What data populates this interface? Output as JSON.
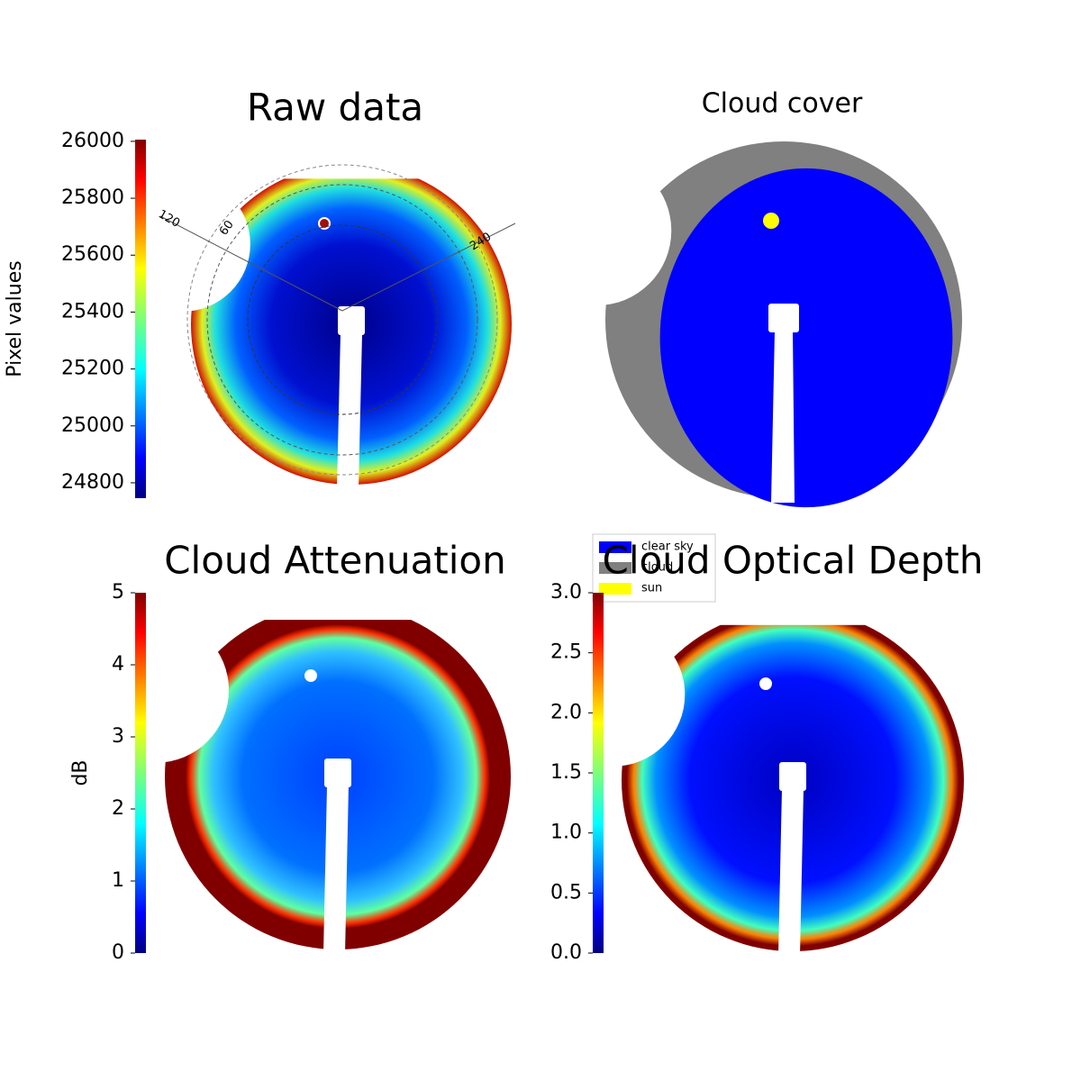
{
  "chart_data": [
    {
      "type": "image",
      "title": "Raw data",
      "colorbar": {
        "label": "Pixel values",
        "colormap": "jet",
        "lim": [
          24746,
          26006
        ],
        "ticks": [
          24800,
          25000,
          25200,
          25400,
          25600,
          25800,
          26000
        ]
      },
      "annotations": [
        "120",
        "60",
        "240"
      ]
    },
    {
      "type": "mask",
      "title": "Cloud cover",
      "legend": {
        "entries": [
          {
            "name": "clear sky",
            "color": "#0000ff"
          },
          {
            "name": "cloud",
            "color": "#808080"
          },
          {
            "name": "sun",
            "color": "#ffff00"
          }
        ]
      }
    },
    {
      "type": "image",
      "title": "Cloud Attenuation",
      "colorbar": {
        "label": "dB",
        "colormap": "jet",
        "lim": [
          0,
          5
        ],
        "ticks": [
          0,
          1,
          2,
          3,
          4,
          5
        ]
      }
    },
    {
      "type": "image",
      "title": "Cloud Optical Depth",
      "colorbar": {
        "colormap": "jet",
        "lim": [
          0,
          3
        ],
        "ticks": [
          {
            "value": 0,
            "label": "0.0"
          },
          {
            "value": 0.5,
            "label": "0.5"
          },
          {
            "value": 1,
            "label": "1.0"
          },
          {
            "value": 1.5,
            "label": "1.5"
          },
          {
            "value": 2,
            "label": "2.0"
          },
          {
            "value": 2.5,
            "label": "2.5"
          },
          {
            "value": 3,
            "label": "3.0"
          }
        ]
      }
    }
  ]
}
